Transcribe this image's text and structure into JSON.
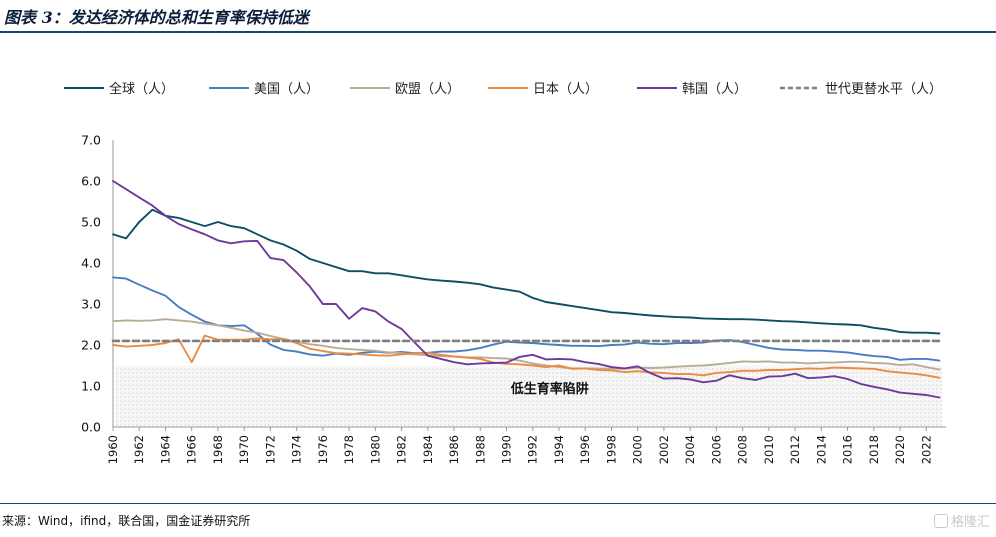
{
  "header": {
    "title": "图表 3：发达经济体的总和生育率保持低迷"
  },
  "footer": {
    "source": "来源：Wind，ifind，联合国，国金证券研究所",
    "watermark": "格隆汇"
  },
  "colors": {
    "global": "#0e4d63",
    "usa": "#4a7cc4",
    "eu": "#b9ac97",
    "japan": "#ee8a3d",
    "korea": "#6d3a9c",
    "replacement": "#7f7f7f",
    "rule": "#16486e"
  },
  "chart_data": {
    "type": "line",
    "title": "",
    "xlabel": "",
    "ylabel": "",
    "ylim": [
      0,
      7
    ],
    "yticks": [
      "0.0",
      "1.0",
      "2.0",
      "3.0",
      "4.0",
      "5.0",
      "6.0",
      "7.0"
    ],
    "x_tick_labels": [
      "1960",
      "1962",
      "1964",
      "1966",
      "1968",
      "1970",
      "1972",
      "1974",
      "1976",
      "1978",
      "1980",
      "1982",
      "1984",
      "1986",
      "1988",
      "1990",
      "1992",
      "1994",
      "1996",
      "1998",
      "2000",
      "2002",
      "2004",
      "2006",
      "2008",
      "2010",
      "2012",
      "2014",
      "2016",
      "2018",
      "2020",
      "2022"
    ],
    "legend_position": "top",
    "annotation": "低生育率陷阱",
    "trap_band_upper": 1.5,
    "grid": false,
    "x": [
      1960,
      1961,
      1962,
      1963,
      1964,
      1965,
      1966,
      1967,
      1968,
      1969,
      1970,
      1971,
      1972,
      1973,
      1974,
      1975,
      1976,
      1977,
      1978,
      1979,
      1980,
      1981,
      1982,
      1983,
      1984,
      1985,
      1986,
      1987,
      1988,
      1989,
      1990,
      1991,
      1992,
      1993,
      1994,
      1995,
      1996,
      1997,
      1998,
      1999,
      2000,
      2001,
      2002,
      2003,
      2004,
      2005,
      2006,
      2007,
      2008,
      2009,
      2010,
      2011,
      2012,
      2013,
      2014,
      2015,
      2016,
      2017,
      2018,
      2019,
      2020,
      2021,
      2022,
      2023
    ],
    "series": [
      {
        "name": "全球（人）",
        "key": "global",
        "style": "solid",
        "values": [
          4.7,
          4.6,
          5.0,
          5.3,
          5.15,
          5.1,
          5.0,
          4.9,
          5.0,
          4.9,
          4.85,
          4.7,
          4.55,
          4.45,
          4.3,
          4.1,
          4.0,
          3.9,
          3.8,
          3.8,
          3.75,
          3.75,
          3.7,
          3.65,
          3.6,
          3.57,
          3.55,
          3.52,
          3.48,
          3.4,
          3.35,
          3.3,
          3.15,
          3.05,
          3.0,
          2.95,
          2.9,
          2.85,
          2.8,
          2.78,
          2.75,
          2.72,
          2.7,
          2.68,
          2.67,
          2.65,
          2.64,
          2.63,
          2.63,
          2.62,
          2.6,
          2.58,
          2.57,
          2.55,
          2.53,
          2.51,
          2.5,
          2.48,
          2.42,
          2.38,
          2.32,
          2.3,
          2.3,
          2.28
        ]
      },
      {
        "name": "美国（人）",
        "key": "usa",
        "style": "solid",
        "values": [
          3.65,
          3.62,
          3.47,
          3.33,
          3.2,
          2.93,
          2.74,
          2.57,
          2.48,
          2.46,
          2.48,
          2.27,
          2.01,
          1.88,
          1.84,
          1.77,
          1.74,
          1.79,
          1.76,
          1.81,
          1.84,
          1.81,
          1.83,
          1.8,
          1.81,
          1.84,
          1.84,
          1.87,
          1.93,
          2.01,
          2.08,
          2.06,
          2.05,
          2.02,
          2.0,
          1.98,
          1.98,
          1.97,
          2.0,
          2.01,
          2.06,
          2.03,
          2.02,
          2.05,
          2.05,
          2.06,
          2.11,
          2.12,
          2.07,
          2.0,
          1.93,
          1.89,
          1.88,
          1.86,
          1.86,
          1.84,
          1.82,
          1.77,
          1.73,
          1.71,
          1.64,
          1.66,
          1.66,
          1.62
        ]
      },
      {
        "name": "欧盟（人）",
        "key": "eu",
        "style": "solid",
        "values": [
          2.58,
          2.6,
          2.59,
          2.6,
          2.63,
          2.6,
          2.57,
          2.52,
          2.48,
          2.42,
          2.35,
          2.3,
          2.22,
          2.15,
          2.08,
          2.02,
          1.98,
          1.93,
          1.9,
          1.88,
          1.86,
          1.82,
          1.8,
          1.77,
          1.75,
          1.73,
          1.72,
          1.7,
          1.7,
          1.68,
          1.67,
          1.62,
          1.55,
          1.5,
          1.46,
          1.43,
          1.43,
          1.43,
          1.42,
          1.42,
          1.45,
          1.44,
          1.45,
          1.47,
          1.49,
          1.5,
          1.53,
          1.56,
          1.6,
          1.59,
          1.6,
          1.57,
          1.57,
          1.55,
          1.57,
          1.57,
          1.59,
          1.59,
          1.56,
          1.55,
          1.51,
          1.53,
          1.46,
          1.4
        ]
      },
      {
        "name": "日本（人）",
        "key": "japan",
        "style": "solid",
        "values": [
          2.0,
          1.96,
          1.98,
          2.0,
          2.05,
          2.14,
          1.58,
          2.23,
          2.13,
          2.13,
          2.13,
          2.16,
          2.14,
          2.14,
          2.05,
          1.91,
          1.85,
          1.8,
          1.79,
          1.77,
          1.75,
          1.74,
          1.77,
          1.8,
          1.81,
          1.76,
          1.72,
          1.69,
          1.66,
          1.57,
          1.54,
          1.53,
          1.5,
          1.46,
          1.5,
          1.42,
          1.43,
          1.39,
          1.38,
          1.34,
          1.36,
          1.33,
          1.32,
          1.29,
          1.29,
          1.26,
          1.32,
          1.34,
          1.37,
          1.37,
          1.39,
          1.39,
          1.41,
          1.43,
          1.42,
          1.45,
          1.44,
          1.43,
          1.42,
          1.36,
          1.33,
          1.3,
          1.26,
          1.2
        ]
      },
      {
        "name": "韩国（人）",
        "key": "korea",
        "style": "solid",
        "values": [
          6.0,
          5.8,
          5.6,
          5.4,
          5.15,
          4.95,
          4.82,
          4.7,
          4.55,
          4.48,
          4.53,
          4.54,
          4.12,
          4.07,
          3.77,
          3.43,
          3.0,
          3.0,
          2.64,
          2.9,
          2.82,
          2.57,
          2.39,
          2.06,
          1.74,
          1.66,
          1.58,
          1.53,
          1.55,
          1.56,
          1.57,
          1.71,
          1.76,
          1.65,
          1.66,
          1.65,
          1.58,
          1.54,
          1.46,
          1.43,
          1.48,
          1.31,
          1.18,
          1.19,
          1.16,
          1.09,
          1.13,
          1.26,
          1.19,
          1.15,
          1.23,
          1.24,
          1.3,
          1.19,
          1.21,
          1.24,
          1.17,
          1.05,
          0.98,
          0.92,
          0.84,
          0.81,
          0.78,
          0.72
        ]
      },
      {
        "name": "世代更替水平（人）",
        "key": "replacement",
        "style": "dashed",
        "values": [
          2.1,
          2.1,
          2.1,
          2.1,
          2.1,
          2.1,
          2.1,
          2.1,
          2.1,
          2.1,
          2.1,
          2.1,
          2.1,
          2.1,
          2.1,
          2.1,
          2.1,
          2.1,
          2.1,
          2.1,
          2.1,
          2.1,
          2.1,
          2.1,
          2.1,
          2.1,
          2.1,
          2.1,
          2.1,
          2.1,
          2.1,
          2.1,
          2.1,
          2.1,
          2.1,
          2.1,
          2.1,
          2.1,
          2.1,
          2.1,
          2.1,
          2.1,
          2.1,
          2.1,
          2.1,
          2.1,
          2.1,
          2.1,
          2.1,
          2.1,
          2.1,
          2.1,
          2.1,
          2.1,
          2.1,
          2.1,
          2.1,
          2.1,
          2.1,
          2.1,
          2.1,
          2.1,
          2.1,
          2.1
        ]
      }
    ]
  }
}
